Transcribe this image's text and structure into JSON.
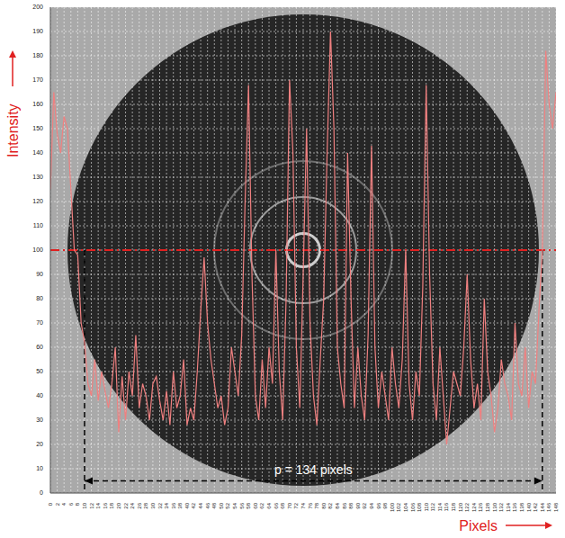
{
  "chart_data": {
    "type": "line",
    "x_label": "Pixels",
    "y_label": "Intensity",
    "x": [
      0,
      1,
      2,
      3,
      4,
      5,
      6,
      7,
      8,
      9,
      10,
      11,
      12,
      13,
      14,
      15,
      16,
      17,
      18,
      19,
      20,
      21,
      22,
      23,
      24,
      25,
      26,
      27,
      28,
      29,
      30,
      31,
      32,
      33,
      34,
      35,
      36,
      37,
      38,
      39,
      40,
      41,
      42,
      43,
      44,
      45,
      46,
      47,
      48,
      49,
      50,
      51,
      52,
      53,
      54,
      55,
      56,
      57,
      58,
      59,
      60,
      61,
      62,
      63,
      64,
      65,
      66,
      67,
      68,
      69,
      70,
      71,
      72,
      73,
      74,
      75,
      76,
      77,
      78,
      79,
      80,
      81,
      82,
      83,
      84,
      85,
      86,
      87,
      88,
      89,
      90,
      91,
      92,
      93,
      94,
      95,
      96,
      97,
      98,
      99,
      100,
      101,
      102,
      103,
      104,
      105,
      106,
      107,
      108,
      109,
      110,
      111,
      112,
      113,
      114,
      115,
      116,
      117,
      118,
      119,
      120,
      121,
      122,
      123,
      124,
      125,
      126,
      127,
      128,
      129,
      130,
      131,
      132,
      133,
      134,
      135,
      136,
      137,
      138,
      139,
      140,
      141,
      142,
      143,
      144,
      145,
      146,
      147,
      148
    ],
    "values": [
      125,
      165,
      148,
      140,
      155,
      150,
      125,
      100,
      98,
      70,
      62,
      45,
      40,
      55,
      38,
      50,
      42,
      35,
      45,
      60,
      25,
      48,
      30,
      50,
      40,
      65,
      35,
      45,
      40,
      30,
      45,
      48,
      38,
      30,
      42,
      28,
      50,
      35,
      40,
      55,
      28,
      35,
      30,
      50,
      75,
      97,
      70,
      55,
      45,
      35,
      40,
      28,
      35,
      60,
      50,
      40,
      65,
      120,
      168,
      90,
      40,
      30,
      55,
      35,
      60,
      45,
      100,
      50,
      30,
      80,
      170,
      140,
      60,
      35,
      90,
      150,
      70,
      40,
      28,
      55,
      80,
      140,
      190,
      150,
      60,
      45,
      35,
      140,
      80,
      35,
      60,
      40,
      30,
      65,
      143,
      60,
      35,
      50,
      40,
      30,
      60,
      45,
      35,
      55,
      100,
      45,
      30,
      50,
      40,
      85,
      168,
      90,
      45,
      30,
      60,
      40,
      20,
      35,
      50,
      45,
      40,
      60,
      90,
      55,
      35,
      45,
      30,
      80,
      50,
      40,
      25,
      35,
      55,
      45,
      40,
      30,
      70,
      45,
      40,
      60,
      35,
      50,
      45,
      75,
      100,
      182,
      160,
      150,
      165
    ],
    "color": "#f08080",
    "xlim": [
      0,
      148
    ],
    "xticks": [
      0,
      2,
      4,
      6,
      8,
      10,
      12,
      14,
      16,
      18,
      20,
      22,
      24,
      26,
      28,
      30,
      32,
      34,
      36,
      38,
      40,
      42,
      44,
      46,
      48,
      50,
      52,
      54,
      56,
      58,
      60,
      62,
      64,
      66,
      68,
      70,
      72,
      74,
      76,
      78,
      80,
      82,
      84,
      86,
      88,
      90,
      92,
      94,
      96,
      98,
      100,
      102,
      104,
      106,
      108,
      110,
      112,
      114,
      116,
      118,
      120,
      122,
      124,
      126,
      128,
      130,
      132,
      134,
      136,
      138,
      140,
      142,
      144,
      146,
      148
    ],
    "ylim": [
      0,
      200
    ],
    "yticks": [
      0,
      10,
      20,
      30,
      40,
      50,
      60,
      70,
      80,
      90,
      100,
      110,
      120,
      130,
      140,
      150,
      160,
      170,
      180,
      190,
      200
    ],
    "grid": true,
    "reference_y": 100,
    "span": {
      "x": [
        10,
        144
      ],
      "label": "p = 134 pixels"
    }
  }
}
